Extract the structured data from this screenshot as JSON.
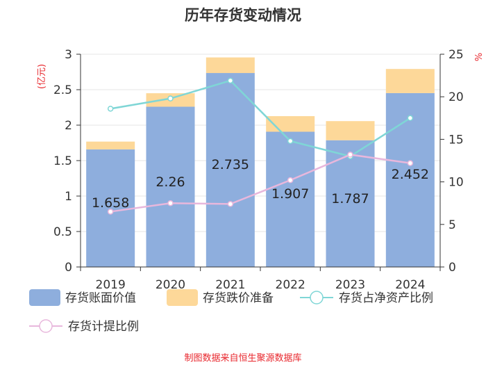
{
  "chart_data": {
    "type": "bar",
    "title": "历年存货变动情况",
    "categories": [
      "2019",
      "2020",
      "2021",
      "2022",
      "2023",
      "2024"
    ],
    "left_axis": {
      "unit": "(亿元)",
      "ylim": [
        0,
        3
      ],
      "ticks": [
        "0",
        "0.5",
        "1",
        "1.5",
        "2",
        "2.5",
        "3"
      ]
    },
    "right_axis": {
      "unit": "%",
      "ylim": [
        0,
        25
      ],
      "ticks": [
        "0",
        "5",
        "10",
        "15",
        "20",
        "25"
      ]
    },
    "series": [
      {
        "name": "存货账面价值",
        "kind": "bar",
        "axis": "left",
        "color": "#8eaedd",
        "values": [
          1.658,
          2.26,
          2.735,
          1.907,
          1.787,
          2.452
        ],
        "labels": [
          "1.658",
          "2.26",
          "2.735",
          "1.907",
          "1.787",
          "2.452"
        ]
      },
      {
        "name": "存货跌价准备",
        "kind": "bar-stack",
        "axis": "left",
        "color": "#fdd899",
        "values": [
          0.11,
          0.19,
          0.22,
          0.22,
          0.27,
          0.34
        ]
      },
      {
        "name": "存货占净资产比例",
        "kind": "line",
        "axis": "right",
        "color": "#7fd6d6",
        "values": [
          18.6,
          19.8,
          21.9,
          14.8,
          13.0,
          17.5
        ]
      },
      {
        "name": "存货计提比例",
        "kind": "line",
        "axis": "right",
        "color": "#e8b7dc",
        "values": [
          6.5,
          7.5,
          7.4,
          10.2,
          13.2,
          12.2
        ]
      }
    ],
    "grid": true,
    "legend_position": "bottom"
  },
  "source_note": "制图数据来自恒生聚源数据库"
}
